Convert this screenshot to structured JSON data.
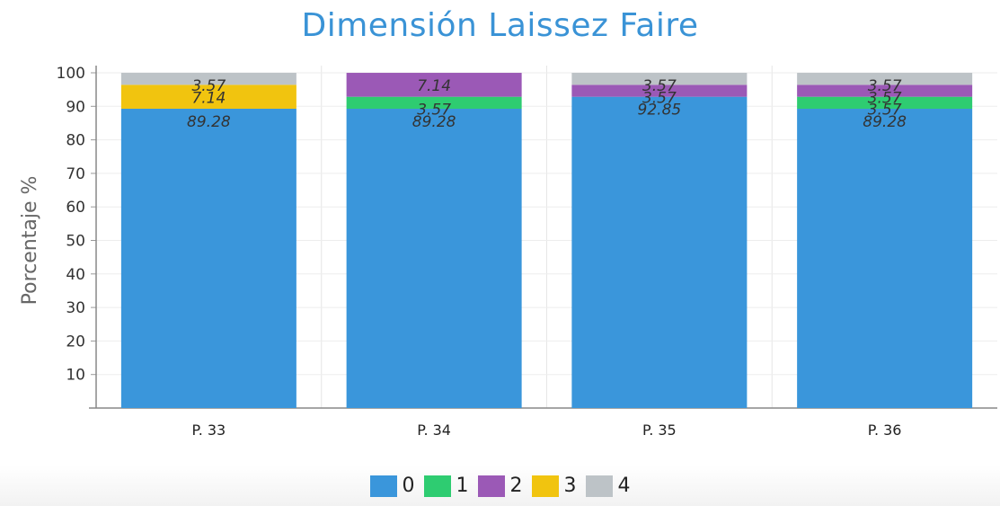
{
  "chart_data": {
    "type": "bar",
    "stacked": true,
    "title": "Dimensión Laissez Faire",
    "ylabel": "Porcentaje %",
    "xlabel": "",
    "ylim": [
      0,
      100
    ],
    "yticks": [
      10,
      20,
      30,
      40,
      50,
      60,
      70,
      80,
      90,
      100
    ],
    "categories": [
      "P. 33",
      "P. 34",
      "P. 35",
      "P. 36"
    ],
    "series": [
      {
        "name": "0",
        "color": "#3a96db",
        "values": [
          89.28,
          89.28,
          92.85,
          89.28
        ],
        "labels": [
          "89.28",
          "89.28",
          "92.85",
          "89.28"
        ]
      },
      {
        "name": "1",
        "color": "#2ecc71",
        "values": [
          0,
          3.57,
          0,
          3.57
        ],
        "labels": [
          "",
          "3.57",
          "",
          "3.57"
        ]
      },
      {
        "name": "2",
        "color": "#9b59b6",
        "values": [
          0,
          7.14,
          3.57,
          3.57
        ],
        "labels": [
          "",
          "7.14",
          "3.57",
          "3.57"
        ]
      },
      {
        "name": "3",
        "color": "#f1c40f",
        "values": [
          7.14,
          0,
          0,
          0
        ],
        "labels": [
          "7.14",
          "",
          "",
          ""
        ]
      },
      {
        "name": "4",
        "color": "#bdc3c7",
        "values": [
          3.57,
          0,
          3.57,
          3.57
        ],
        "labels": [
          "3.57",
          "",
          "3.57",
          "3.57"
        ]
      }
    ],
    "grid": true,
    "legend_position": "bottom"
  }
}
